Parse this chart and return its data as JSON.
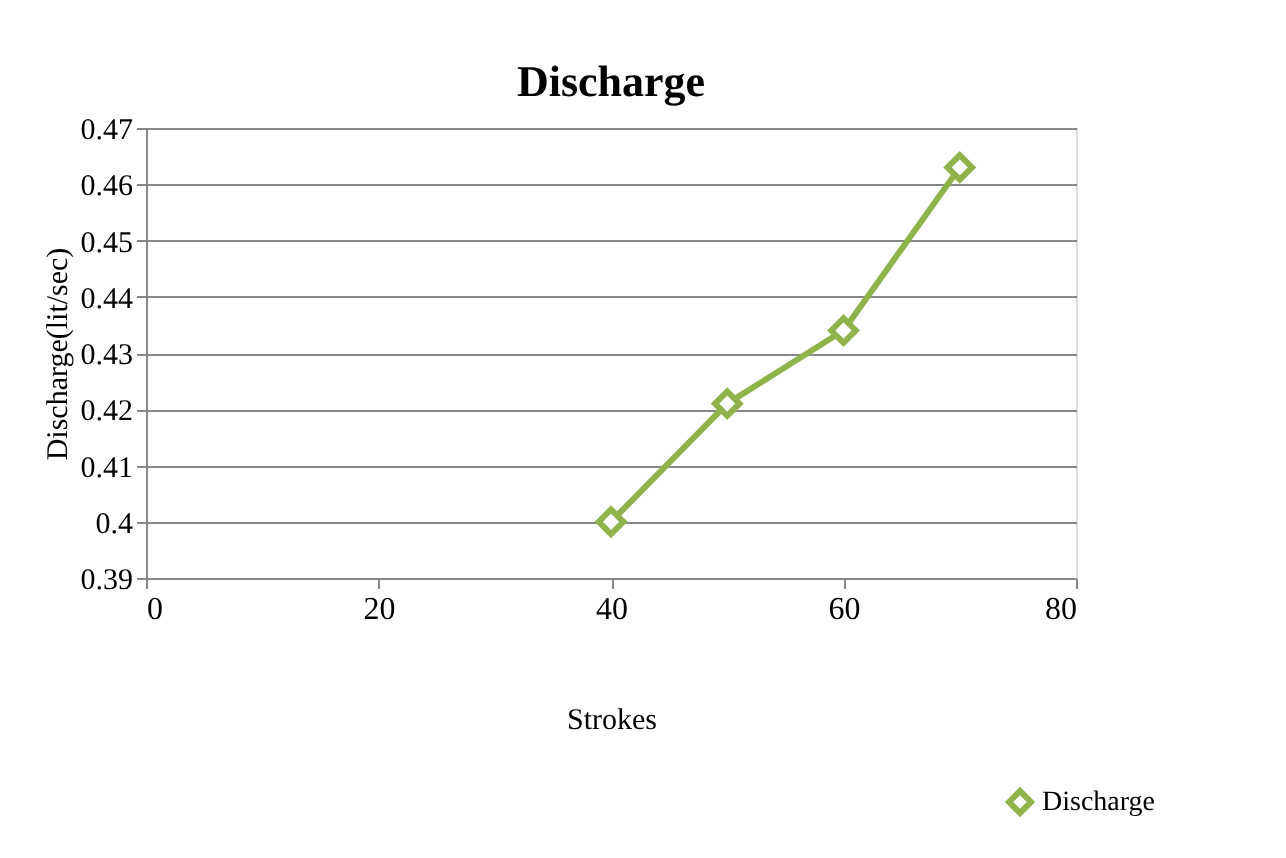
{
  "chart_data": {
    "type": "line",
    "title": "Discharge",
    "xlabel": "Strokes",
    "ylabel": "Discharge(lit/sec)",
    "x": [
      40,
      50,
      60,
      70
    ],
    "series": [
      {
        "name": "Discharge",
        "color": "#8db34a",
        "values": [
          0.4,
          0.421,
          0.434,
          0.463
        ]
      }
    ],
    "xlim": [
      0,
      80
    ],
    "xticks": [
      0,
      20,
      40,
      60,
      80
    ],
    "ylim": [
      0.39,
      0.47
    ],
    "yticks": [
      0.39,
      0.4,
      0.41,
      0.42,
      0.43,
      0.44,
      0.45,
      0.46,
      0.47
    ],
    "grid": "y",
    "legend": "bottom right",
    "marker": "diamond",
    "line_style": "solid"
  }
}
